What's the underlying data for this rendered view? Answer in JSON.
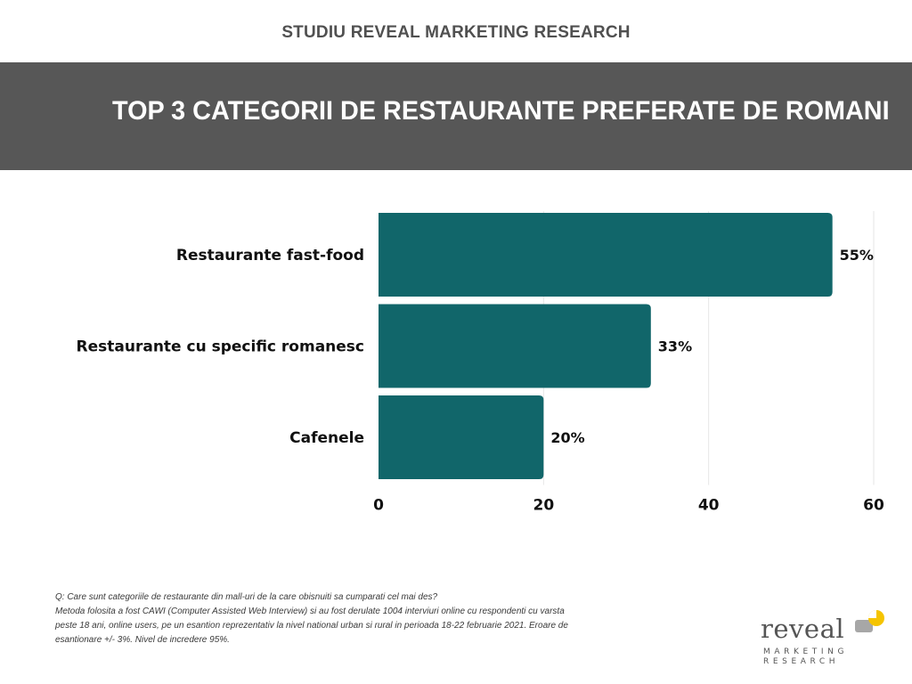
{
  "header": {
    "study_title": "STUDIU REVEAL MARKETING RESEARCH",
    "banner_title": "TOP 3 CATEGORII DE RESTAURANTE PREFERATE DE ROMANI"
  },
  "colors": {
    "banner": "#575757",
    "bar": "#11666A",
    "logo_accent": "#F5C400",
    "logo_gray": "#A7A7A7"
  },
  "chart_data": {
    "type": "bar",
    "orientation": "horizontal",
    "categories": [
      "Restaurante fast-food",
      "Restaurante cu specific romanesc",
      "Cafenele"
    ],
    "values": [
      55,
      33,
      20
    ],
    "value_labels": [
      "55%",
      "33%",
      "20%"
    ],
    "xlim": [
      0,
      60
    ],
    "xticks": [
      0,
      20,
      40,
      60
    ],
    "grid": "vertical",
    "legend": "none"
  },
  "footnote": {
    "lines": [
      "Q: Care sunt categoriile de restaurante din mall-uri de la care obisnuiti sa cumparati cel mai des?",
      "Metoda folosita a fost CAWI (Computer Assisted Web Interview) si au fost derulate 1004 interviuri online cu respondenti cu varsta",
      "peste 18 ani, online users, pe un esantion reprezentativ la nivel national urban si rural in perioada 18-22 februarie 2021. Eroare de",
      "esantionare +/- 3%. Nivel de incredere 95%."
    ]
  },
  "logo": {
    "wordmark": "reveal",
    "subline1": "MARKETING",
    "subline2": "RESEARCH"
  }
}
